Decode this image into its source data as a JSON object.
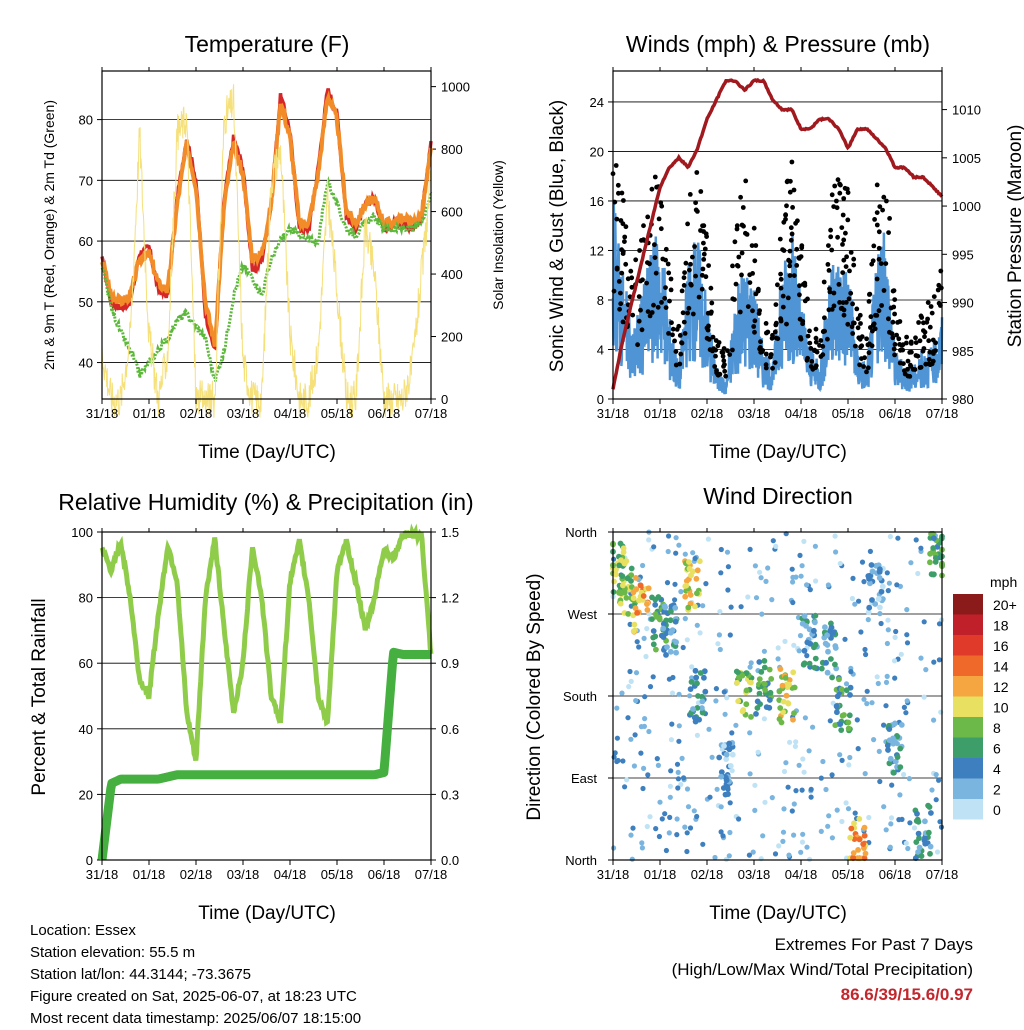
{
  "panels": {
    "temperature": {
      "title": "Temperature (F)",
      "xlabel": "Time (Day/UTC)",
      "ylabel_left": "2m & 9m T (Red, Orange) & 2m Td (Green)",
      "ylabel_right": "Solar Insolation (Yellow)"
    },
    "winds": {
      "title": "Winds (mph) & Pressure (mb)",
      "xlabel": "Time (Day/UTC)",
      "ylabel_left": "Sonic Wind & Gust (Blue, Black)",
      "ylabel_right": "Station Pressure (Maroon)"
    },
    "humidity": {
      "title": "Relative Humidity (%) & Precipitation (in)",
      "xlabel": "Time (Day/UTC)",
      "ylabel_left": "Percent & Total Rainfall"
    },
    "direction": {
      "title": "Wind Direction",
      "xlabel": "Time (Day/UTC)",
      "ylabel_left": "Direction (Colored By Speed)",
      "legend_title": "mph"
    }
  },
  "info": {
    "location": "Location: Essex",
    "elevation": "Station elevation: 55.5 m",
    "latlon": "Station lat/lon: 44.3144; -73.3675",
    "created": "Figure created on Sat, 2025-06-07, at 18:23 UTC",
    "recent": "Most recent data timestamp: 2025/06/07 18:15:00"
  },
  "extremes": {
    "line1": "Extremes For Past 7 Days",
    "line2": "(High/Low/Max Wind/Total Precipitation)",
    "values": "86.6/39/15.6/0.97"
  },
  "colors": {
    "temp_2m": "#d62728",
    "temp_9m": "#f28c28",
    "dewpoint": "#5cb83a",
    "solar": "#f5e07a",
    "wind": "#4f94d4",
    "gust": "#000000",
    "pressure": "#a0191e",
    "rh": "#8fcc4a",
    "precip": "#45b040"
  },
  "chart_data": [
    {
      "type": "line",
      "title": "Temperature (F)",
      "xlabel": "Time (Day/UTC)",
      "ylabel": "2m & 9m T (Red, Orange) & 2m Td (Green)",
      "ylabel_right": "Solar Insolation (Yellow)",
      "xticks": [
        "31/18",
        "01/18",
        "02/18",
        "03/18",
        "04/18",
        "05/18",
        "06/18",
        "07/18"
      ],
      "x_days": [
        0,
        0.2,
        0.4,
        0.6,
        0.8,
        1.0,
        1.2,
        1.4,
        1.6,
        1.8,
        2.0,
        2.2,
        2.4,
        2.6,
        2.8,
        3.0,
        3.2,
        3.4,
        3.6,
        3.8,
        4.0,
        4.2,
        4.4,
        4.6,
        4.8,
        5.0,
        5.2,
        5.4,
        5.6,
        5.8,
        6.0,
        6.2,
        6.4,
        6.6,
        6.8,
        7.0
      ],
      "ylim": [
        34,
        88
      ],
      "yticks": [
        40,
        50,
        60,
        70,
        80
      ],
      "ylim_right": [
        0,
        1050
      ],
      "yticks_right": [
        0,
        200,
        400,
        600,
        800,
        1000
      ],
      "series": [
        {
          "name": "2m T",
          "color": "#d62728",
          "values": [
            57,
            50,
            49,
            50,
            58,
            59,
            52,
            51,
            67,
            77,
            70,
            48,
            42,
            67,
            77,
            72,
            55,
            57,
            66,
            84,
            78,
            62,
            62,
            72,
            85,
            81,
            64,
            62,
            66,
            67,
            62,
            63,
            63,
            62,
            64,
            76
          ]
        },
        {
          "name": "9m T",
          "color": "#f28c28",
          "values": [
            57,
            51,
            50,
            51,
            57,
            58,
            53,
            52,
            66,
            76,
            69,
            50,
            43,
            66,
            76,
            71,
            57,
            58,
            66,
            83,
            77,
            63,
            63,
            71,
            84,
            80,
            65,
            63,
            66,
            67,
            63,
            63,
            64,
            63,
            64,
            75
          ]
        },
        {
          "name": "2m Td",
          "color": "#5cb83a",
          "values": [
            56,
            49,
            45,
            42,
            38,
            40,
            42,
            44,
            47,
            48,
            46,
            44,
            37,
            42,
            51,
            56,
            54,
            51,
            57,
            60,
            62,
            61,
            60,
            60,
            70,
            66,
            62,
            61,
            63,
            64,
            62,
            62,
            62,
            62,
            63,
            68
          ]
        },
        {
          "name": "Solar",
          "color": "#f5e07a",
          "axis": "right",
          "values": [
            150,
            0,
            0,
            200,
            850,
            200,
            0,
            150,
            850,
            900,
            0,
            0,
            0,
            900,
            950,
            120,
            0,
            0,
            700,
            800,
            200,
            0,
            0,
            150,
            650,
            350,
            0,
            0,
            550,
            400,
            0,
            0,
            0,
            100,
            400,
            700
          ]
        }
      ]
    },
    {
      "type": "line",
      "title": "Winds (mph) & Pressure (mb)",
      "xlabel": "Time (Day/UTC)",
      "ylabel": "Sonic Wind & Gust (Blue, Black)",
      "ylabel_right": "Station Pressure (Maroon)",
      "xticks": [
        "31/18",
        "01/18",
        "02/18",
        "03/18",
        "04/18",
        "05/18",
        "06/18",
        "07/18"
      ],
      "x_days": [
        0,
        0.2,
        0.4,
        0.6,
        0.8,
        1.0,
        1.2,
        1.4,
        1.6,
        1.8,
        2.0,
        2.2,
        2.4,
        2.6,
        2.8,
        3.0,
        3.2,
        3.4,
        3.6,
        3.8,
        4.0,
        4.2,
        4.4,
        4.6,
        4.8,
        5.0,
        5.2,
        5.4,
        5.6,
        5.8,
        6.0,
        6.2,
        6.4,
        6.6,
        6.8,
        7.0
      ],
      "ylim": [
        0,
        26.5
      ],
      "yticks": [
        0,
        4,
        8,
        12,
        16,
        20,
        24
      ],
      "ylim_right": [
        980,
        1014
      ],
      "yticks_right": [
        980,
        985,
        990,
        995,
        1000,
        1005,
        1010
      ],
      "series": [
        {
          "name": "Wind",
          "color": "#4f94d4",
          "values": [
            12,
            8,
            4,
            6,
            9,
            10,
            5,
            2,
            8,
            10,
            6,
            2,
            1,
            6,
            8,
            7,
            3,
            2,
            8,
            10,
            6,
            3,
            2,
            7,
            9,
            8,
            3,
            2,
            8,
            10,
            3,
            2,
            2,
            3,
            3,
            5
          ]
        },
        {
          "name": "Gust",
          "color": "#000000",
          "values": [
            16,
            13,
            8,
            10,
            14,
            15,
            9,
            5,
            13,
            15,
            10,
            4,
            3,
            11,
            14,
            11,
            5,
            4,
            12,
            15,
            10,
            5,
            4,
            12,
            15,
            13,
            6,
            4,
            13,
            16,
            6,
            4,
            4,
            6,
            6,
            9
          ]
        },
        {
          "name": "Pressure",
          "color": "#a0191e",
          "axis": "right",
          "values": [
            981,
            986,
            990,
            994,
            998,
            1002,
            1004,
            1005,
            1004,
            1006,
            1009,
            1011,
            1013,
            1013,
            1012,
            1013,
            1013,
            1011,
            1010,
            1010,
            1008,
            1008,
            1009,
            1009,
            1008,
            1006,
            1008,
            1008,
            1007,
            1006,
            1004,
            1004,
            1003,
            1003,
            1002,
            1001
          ]
        }
      ]
    },
    {
      "type": "line",
      "title": "Relative Humidity (%) & Precipitation (in)",
      "xlabel": "Time (Day/UTC)",
      "ylabel": "Percent & Total Rainfall",
      "xticks": [
        "31/18",
        "01/18",
        "02/18",
        "03/18",
        "04/18",
        "05/18",
        "06/18",
        "07/18"
      ],
      "x_days": [
        0,
        0.2,
        0.4,
        0.6,
        0.8,
        1.0,
        1.2,
        1.4,
        1.6,
        1.8,
        2.0,
        2.2,
        2.4,
        2.6,
        2.8,
        3.0,
        3.2,
        3.4,
        3.6,
        3.8,
        4.0,
        4.2,
        4.4,
        4.6,
        4.8,
        5.0,
        5.2,
        5.4,
        5.6,
        5.8,
        6.0,
        6.2,
        6.4,
        6.6,
        6.8,
        7.0
      ],
      "ylim": [
        0,
        100
      ],
      "yticks": [
        0,
        20,
        40,
        60,
        80,
        100
      ],
      "ylim_right": [
        0,
        1.5
      ],
      "yticks_right": [
        0.0,
        0.3,
        0.6,
        0.9,
        1.2,
        1.5
      ],
      "series": [
        {
          "name": "RH",
          "color": "#8fcc4a",
          "values": [
            95,
            88,
            97,
            80,
            55,
            50,
            75,
            96,
            85,
            45,
            30,
            80,
            98,
            70,
            45,
            60,
            96,
            80,
            50,
            42,
            85,
            97,
            80,
            50,
            42,
            88,
            97,
            85,
            70,
            80,
            95,
            92,
            99,
            99,
            99,
            62
          ]
        },
        {
          "name": "Precip",
          "color": "#45b040",
          "axis": "right",
          "values": [
            0,
            0.35,
            0.37,
            0.37,
            0.37,
            0.37,
            0.37,
            0.38,
            0.39,
            0.39,
            0.39,
            0.39,
            0.39,
            0.39,
            0.39,
            0.39,
            0.39,
            0.39,
            0.39,
            0.39,
            0.39,
            0.39,
            0.39,
            0.39,
            0.39,
            0.39,
            0.39,
            0.39,
            0.39,
            0.39,
            0.4,
            0.95,
            0.94,
            0.94,
            0.94,
            0.94
          ]
        }
      ]
    },
    {
      "type": "scatter",
      "title": "Wind Direction",
      "xlabel": "Time (Day/UTC)",
      "ylabel": "Direction (Colored By Speed)",
      "xticks": [
        "31/18",
        "01/18",
        "02/18",
        "03/18",
        "04/18",
        "05/18",
        "06/18",
        "07/18"
      ],
      "yticks": [
        "North",
        "East",
        "South",
        "West",
        "North"
      ],
      "ytick_degrees": [
        0,
        90,
        180,
        270,
        360
      ],
      "ylim": [
        0,
        360
      ],
      "legend_title": "mph",
      "legend_labels": [
        "20+",
        "18",
        "16",
        "14",
        "12",
        "10",
        "8",
        "6",
        "4",
        "2",
        "0"
      ],
      "legend_colors": [
        "#8b1a1a",
        "#c0202a",
        "#e03a2a",
        "#ef6a2a",
        "#f6a640",
        "#e8e060",
        "#6cb848",
        "#3e9e6a",
        "#3d7fbf",
        "#7ab5e0",
        "#bfe3f5"
      ],
      "clusters": [
        {
          "x_day": 0.1,
          "dir": 320,
          "speed": 8
        },
        {
          "x_day": 0.3,
          "dir": 300,
          "speed": 8
        },
        {
          "x_day": 0.6,
          "dir": 280,
          "speed": 12
        },
        {
          "x_day": 1.0,
          "dir": 260,
          "speed": 6
        },
        {
          "x_day": 1.2,
          "dir": 250,
          "speed": 4
        },
        {
          "x_day": 1.7,
          "dir": 300,
          "speed": 10
        },
        {
          "x_day": 1.8,
          "dir": 180,
          "speed": 4
        },
        {
          "x_day": 2.4,
          "dir": 100,
          "speed": 2
        },
        {
          "x_day": 2.8,
          "dir": 180,
          "speed": 8
        },
        {
          "x_day": 3.2,
          "dir": 190,
          "speed": 6
        },
        {
          "x_day": 3.7,
          "dir": 180,
          "speed": 10
        },
        {
          "x_day": 4.2,
          "dir": 240,
          "speed": 4
        },
        {
          "x_day": 4.6,
          "dir": 230,
          "speed": 4
        },
        {
          "x_day": 4.9,
          "dir": 170,
          "speed": 6
        },
        {
          "x_day": 5.2,
          "dir": 20,
          "speed": 12
        },
        {
          "x_day": 5.6,
          "dir": 300,
          "speed": 2
        },
        {
          "x_day": 6.0,
          "dir": 120,
          "speed": 4
        },
        {
          "x_day": 6.6,
          "dir": 30,
          "speed": 4
        },
        {
          "x_day": 6.9,
          "dir": 340,
          "speed": 6
        }
      ]
    }
  ]
}
